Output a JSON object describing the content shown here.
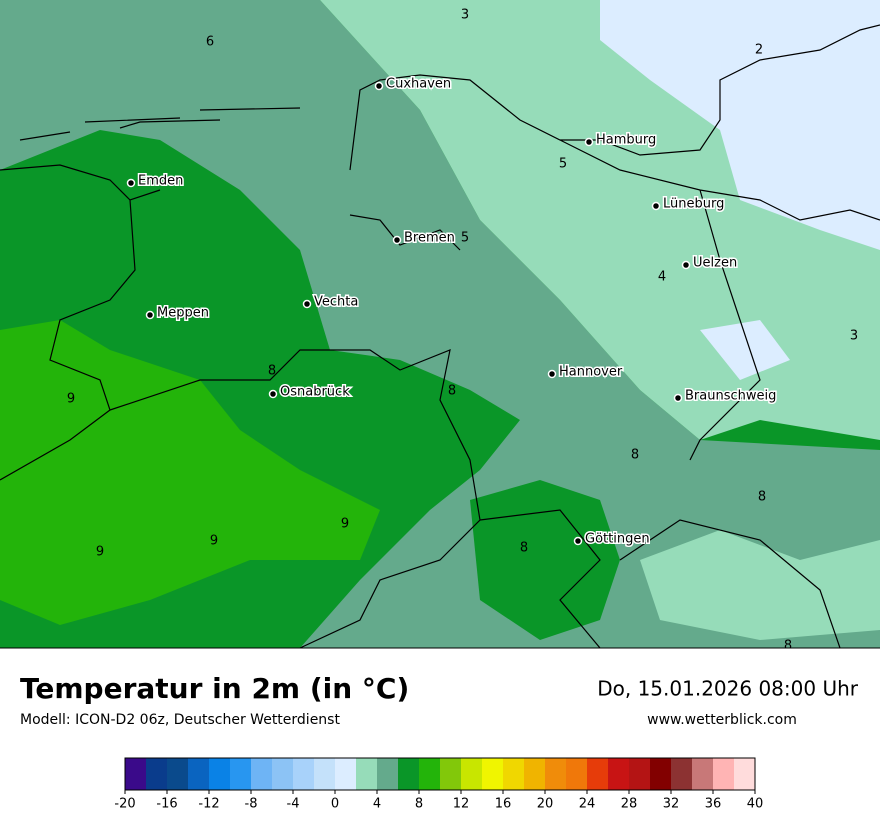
{
  "map": {
    "cities": [
      "Cuxhaven",
      "Hamburg",
      "Emden",
      "Lüneburg",
      "Bremen",
      "Uelzen",
      "Vechta",
      "Meppen",
      "Hannover",
      "Osnabrück",
      "Braunschweig",
      "Göttingen"
    ],
    "contour_labels": [
      "3",
      "6",
      "2",
      "5",
      "5",
      "4",
      "3",
      "8",
      "8",
      "9",
      "8",
      "8",
      "9",
      "9",
      "8",
      "9",
      "8"
    ]
  },
  "footer": {
    "title": "Temperatur in 2m (in °C)",
    "subtitle": "Modell: ICON-D2 06z, Deutscher Wetterdienst",
    "date": "Do, 15.01.2026 08:00 Uhr",
    "website": "www.wetterblick.com"
  },
  "legend": {
    "ticks": [
      -20,
      -16,
      -12,
      -8,
      -4,
      0,
      4,
      8,
      12,
      16,
      20,
      24,
      28,
      32,
      36,
      40
    ],
    "colors": [
      "#3a0a8a",
      "#0a3c8c",
      "#0a4a8c",
      "#0a64c0",
      "#0a82e6",
      "#2896f0",
      "#6eb4f5",
      "#8cc3f5",
      "#a8d2fa",
      "#c4e1fa",
      "#dcedff",
      "#96dcb9",
      "#64aa8c",
      "#0a9628",
      "#23b40a",
      "#82c80a",
      "#c8e600",
      "#f0f500",
      "#f0d700",
      "#f0b400",
      "#f08c0a",
      "#f0780a",
      "#e63c0a",
      "#c81414",
      "#b41414",
      "#820000",
      "#8c3232",
      "#c87878",
      "#ffb4b4",
      "#ffdcdc"
    ]
  }
}
